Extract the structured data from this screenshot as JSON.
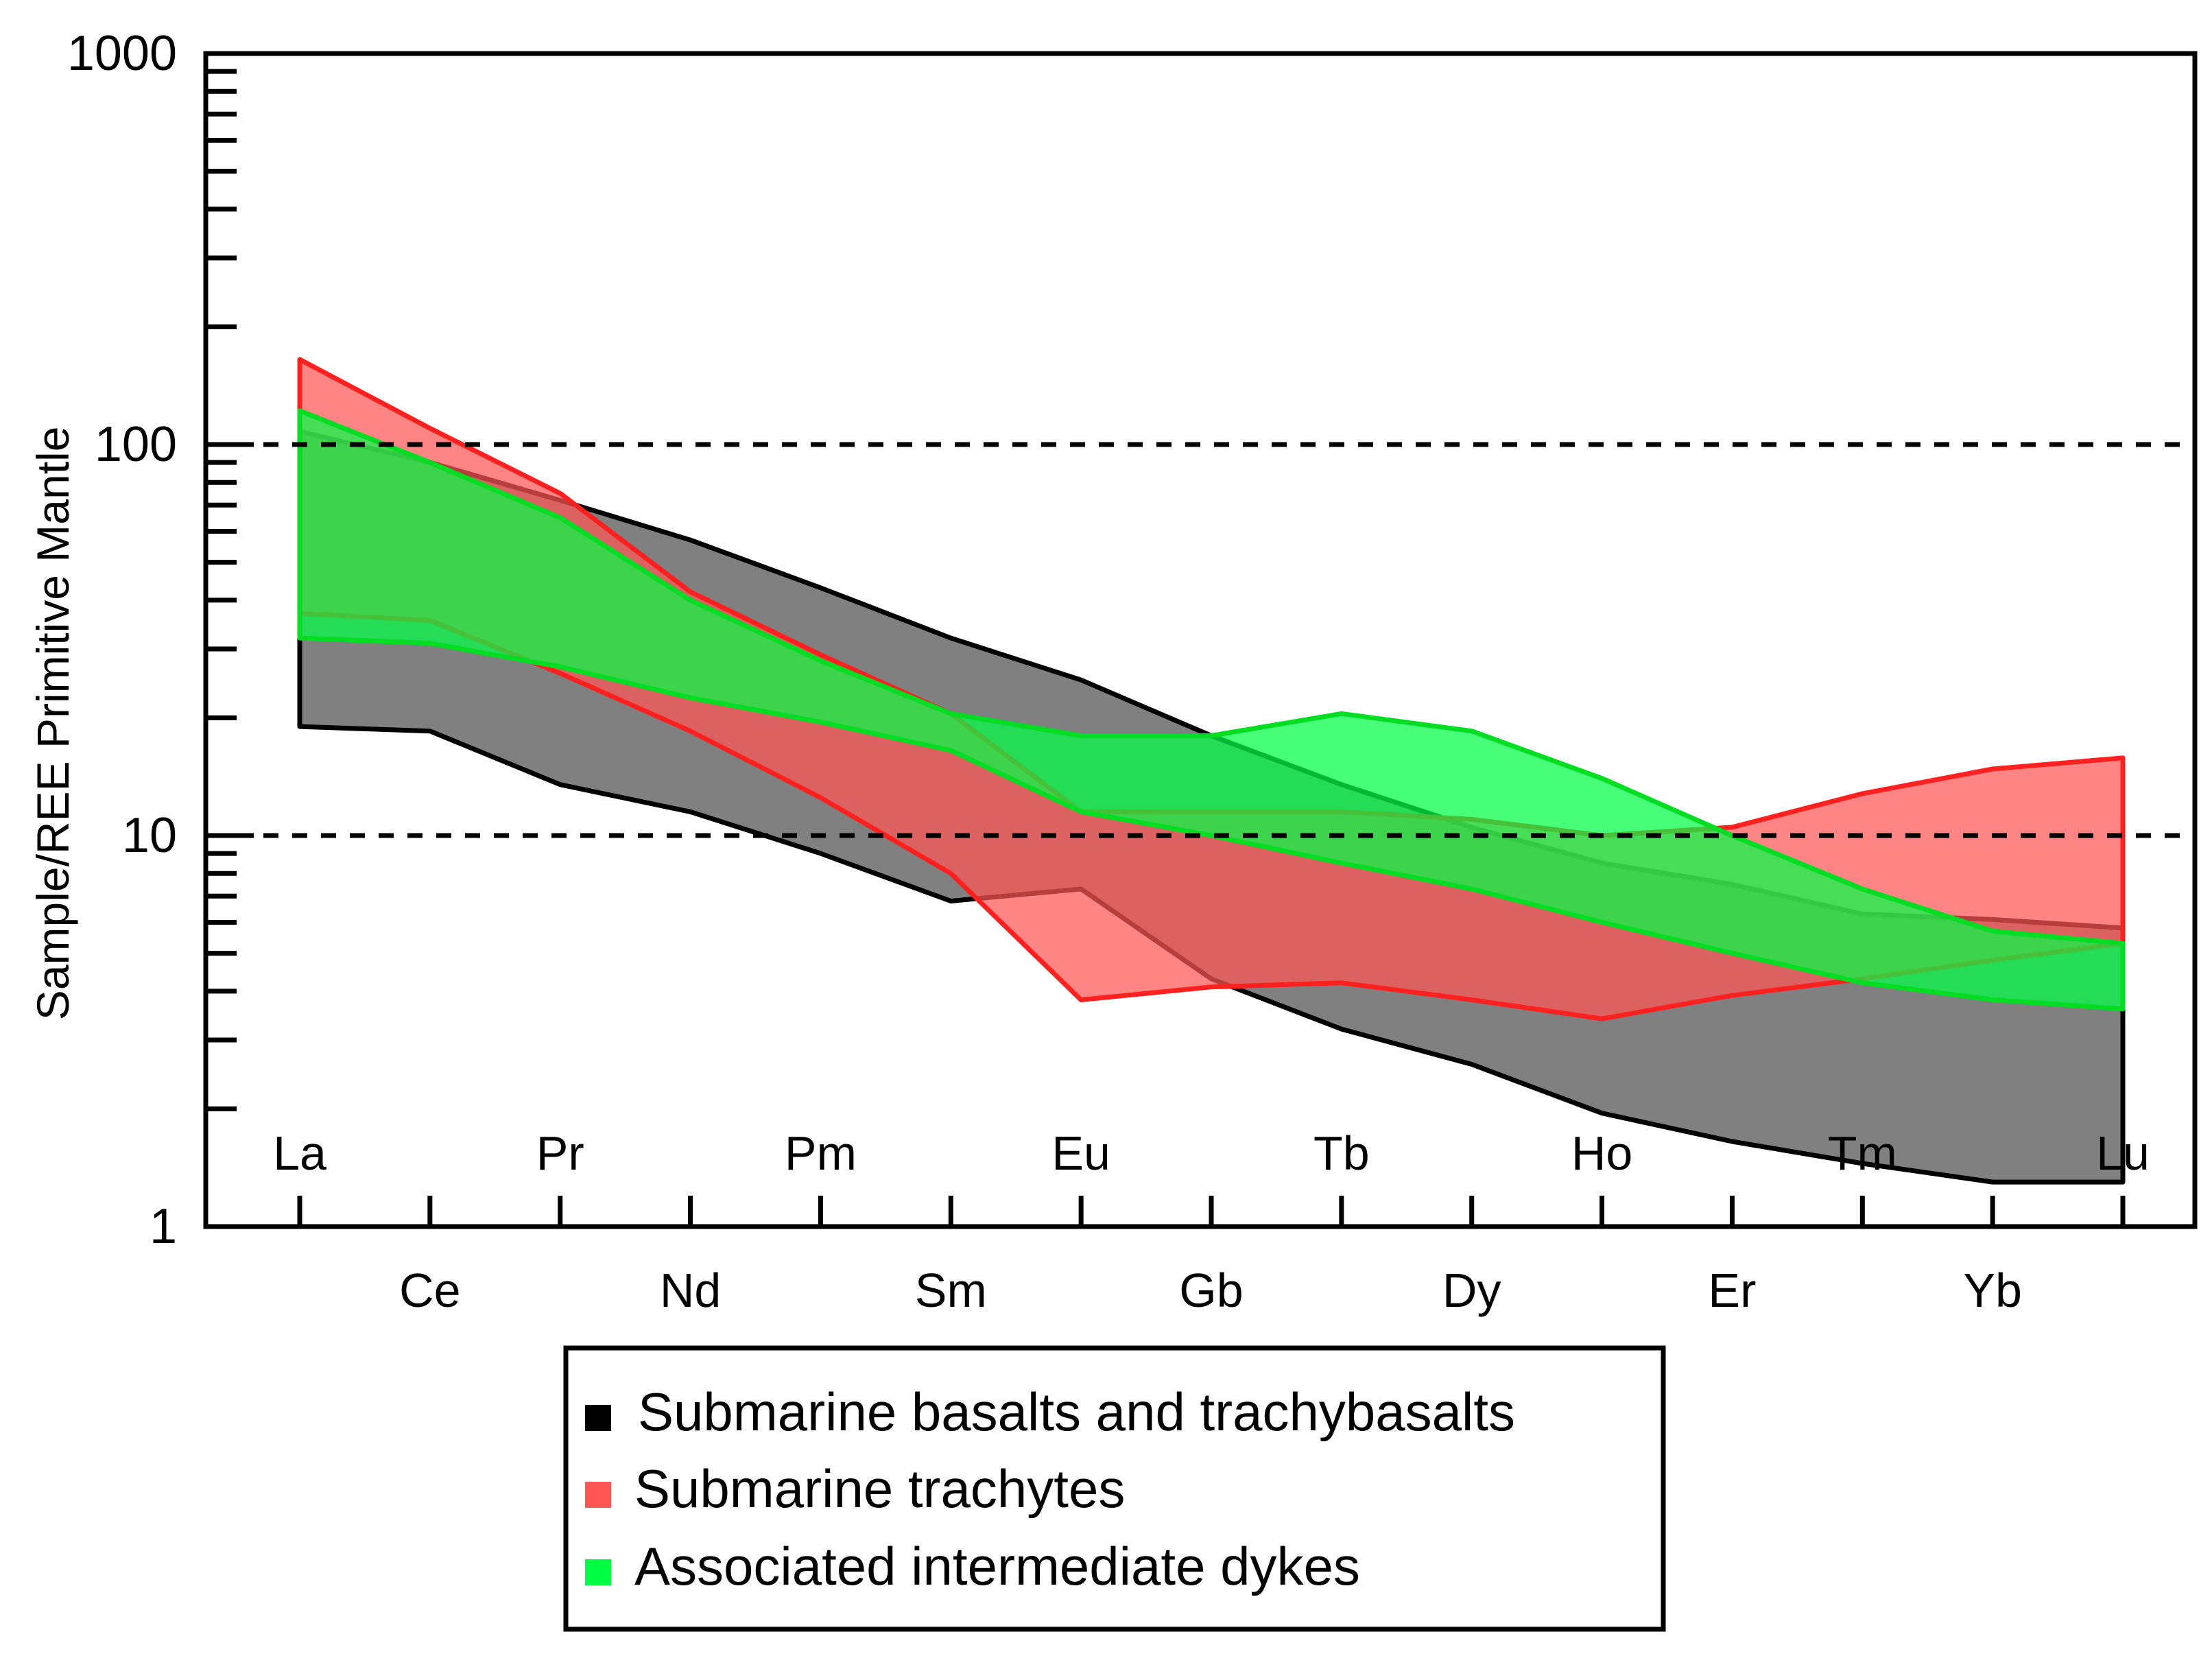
{
  "chart_data": {
    "type": "area",
    "title": "",
    "xlabel": "",
    "ylabel": "Sample/REE Primitive Mantle",
    "yscale": "log",
    "ylim": [
      1,
      1000
    ],
    "y_ticks": [
      "1",
      "10",
      "100",
      "1000"
    ],
    "reference_lines": [
      10,
      100
    ],
    "grid": false,
    "categories": [
      "La",
      "Ce",
      "Pr",
      "Nd",
      "Pm",
      "Sm",
      "Eu",
      "Gb",
      "Tb",
      "Dy",
      "Ho",
      "Er",
      "Tm",
      "Yb",
      "Lu"
    ],
    "upper_row": [
      "La",
      "Pr",
      "Pm",
      "Eu",
      "Tb",
      "Ho",
      "Tm",
      "Lu"
    ],
    "lower_row": [
      "Ce",
      "Nd",
      "Sm",
      "Gb",
      "Dy",
      "Er",
      "Yb"
    ],
    "legend_position": "bottom-center",
    "series": [
      {
        "name": "Submarine basalts and trachybasalts",
        "color": "#000000",
        "fill": "#808080",
        "upper": [
          108,
          90,
          72,
          57,
          43,
          32,
          25,
          18,
          13.5,
          10.5,
          8.5,
          7.5,
          6.3,
          6.1,
          5.8
        ],
        "lower": [
          19,
          18.5,
          13.5,
          11.5,
          9,
          6.8,
          7.3,
          4.3,
          3.2,
          2.6,
          1.95,
          1.65,
          1.45,
          1.3,
          1.3
        ]
      },
      {
        "name": "Submarine trachytes",
        "color": "#ff2020",
        "fill": "#ff5555",
        "upper": [
          165,
          110,
          75,
          42,
          29,
          20.5,
          11.5,
          11.5,
          11.5,
          11,
          10,
          10.5,
          12.8,
          14.8,
          15.8
        ],
        "lower": [
          37,
          35.5,
          26,
          18.5,
          12.5,
          8,
          3.8,
          4.1,
          4.2,
          3.8,
          3.4,
          3.9,
          4.3,
          4.8,
          5.3
        ]
      },
      {
        "name": "Associated intermediate dykes",
        "color": "#00dd22",
        "fill": "#00ff44",
        "upper": [
          122,
          90,
          65,
          40,
          28,
          20.5,
          18,
          18,
          20.5,
          18.5,
          14,
          10,
          7.3,
          5.7,
          5.3
        ],
        "lower": [
          32,
          31,
          27,
          22.5,
          19.5,
          16.5,
          11.5,
          10,
          8.5,
          7.3,
          6,
          5,
          4.2,
          3.8,
          3.6
        ]
      }
    ]
  }
}
